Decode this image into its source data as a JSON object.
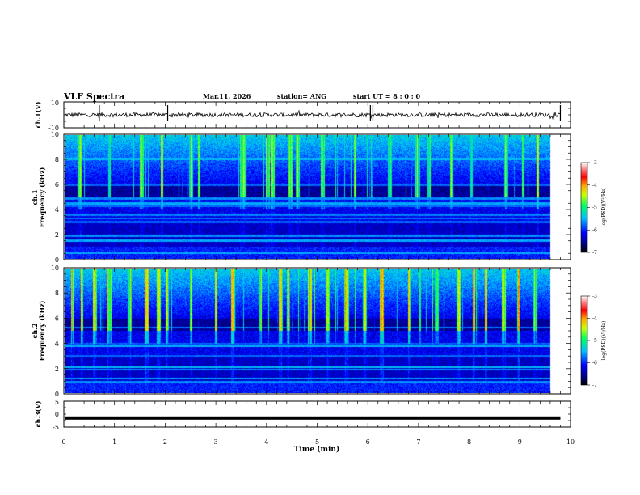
{
  "header": {
    "title": "VLF Spectra",
    "date": "Mar.11, 2026",
    "station": "station= ANG",
    "start_time": "start  UT =   8  :  0   :  0"
  },
  "chart_data": {
    "type": "heatmap",
    "title": "VLF Spectra",
    "x": {
      "label": "Time  (min)",
      "range": [
        0,
        10
      ],
      "ticks": [
        "0",
        "1",
        "2",
        "3",
        "4",
        "5",
        "6",
        "7",
        "8",
        "9",
        "10"
      ],
      "data_end_min": 9.8
    },
    "panels": [
      {
        "id": "ch1_waveform",
        "type": "line",
        "ylabel": "ch.1(V)",
        "ylim": [
          -10,
          10
        ],
        "ticks": [
          "10",
          "-10"
        ],
        "mean_level": 0,
        "spikes_min": [
          0.7,
          2.05,
          6.05,
          6.1,
          9.8
        ]
      },
      {
        "id": "ch1_spectrogram",
        "type": "heatmap",
        "ylabel": "ch.1\nFrequency  (kHz)",
        "ylim": [
          0,
          10
        ],
        "ticks": [
          "10",
          "8",
          "6",
          "4",
          "2",
          "0"
        ],
        "colorbar": {
          "label": "log(PSD)(V²/Hz)",
          "range": [
            -7,
            -3
          ],
          "ticks": [
            "-3",
            "-4",
            "-5",
            "-6",
            "-7"
          ]
        },
        "tone_bands_khz": [
          4.9,
          4.5,
          4.3,
          3.6,
          3.3,
          3.0,
          1.9,
          1.5,
          0.5,
          8.1,
          6.0
        ],
        "burst_times_min": [
          0.3,
          0.9,
          1.55,
          1.95,
          2.55,
          2.7,
          3.55,
          3.62,
          4.1,
          4.2,
          4.55,
          4.7,
          5.2,
          5.85,
          6.55,
          7.1,
          7.35,
          7.8,
          8.2,
          8.9,
          9.25,
          9.55
        ]
      },
      {
        "id": "ch2_spectrogram",
        "type": "heatmap",
        "ylabel": "ch.2\nFrequency  (kHz)",
        "ylim": [
          0,
          10
        ],
        "ticks": [
          "10",
          "8",
          "6",
          "4",
          "2",
          "0"
        ],
        "colorbar": {
          "label": "log(PSD)(V²/Hz)",
          "range": [
            -7,
            -3
          ],
          "ticks": [
            "-3",
            "-4",
            "-5",
            "-6",
            "-7"
          ]
        },
        "tone_bands_khz": [
          5.3,
          4.0,
          3.8,
          3.0,
          2.1,
          1.9,
          1.2,
          0.9
        ],
        "burst_times_min": [
          0.15,
          0.35,
          0.6,
          0.9,
          1.3,
          1.65,
          1.9,
          2.05,
          2.55,
          3.05,
          3.4,
          3.95,
          4.35,
          4.5,
          4.95,
          5.3,
          5.7,
          6.05,
          6.4,
          6.95,
          7.5,
          7.95,
          8.25,
          8.5,
          8.85,
          9.15,
          9.5
        ]
      },
      {
        "id": "ch3_waveform",
        "type": "line",
        "ylabel": "ch.3(V)",
        "ylim": [
          -5,
          5
        ],
        "ticks": [
          "5",
          "0",
          "-5"
        ],
        "mean_level": -1.5
      }
    ]
  },
  "colors": {
    "background": "#ffffff",
    "axis": "#000000",
    "colormap": [
      "#000000",
      "#00008a",
      "#0000ff",
      "#00c0ff",
      "#00ff60",
      "#c8ff00",
      "#ffaa00",
      "#ff0000",
      "#ff8888",
      "#ffffff"
    ]
  }
}
